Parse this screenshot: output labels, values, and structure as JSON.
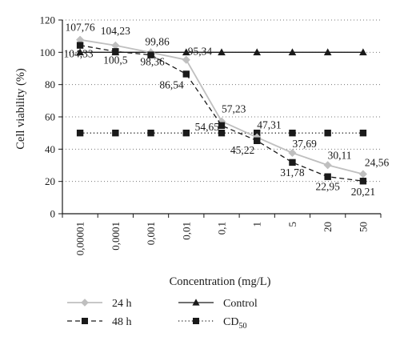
{
  "chart_data": {
    "type": "line",
    "xlabel": "Concentration (mg/L)",
    "ylabel": "Cell viability (%)",
    "ylim": [
      0,
      120
    ],
    "yticks": [
      0,
      20,
      40,
      60,
      80,
      100,
      120
    ],
    "grid": "horizontal dotted",
    "legend_position": "bottom",
    "categories": [
      "0,00001",
      "0,0001",
      "0,001",
      "0,01",
      "0,1",
      "1",
      "5",
      "20",
      "50"
    ],
    "series": [
      {
        "name": "24 h",
        "color": "#bfbfbf",
        "marker": "diamond",
        "line_style": "solid",
        "values": [
          107.76,
          104.23,
          99.86,
          95.34,
          57.23,
          47.31,
          37.69,
          30.11,
          24.56
        ],
        "labels": [
          "107,76",
          "104,23",
          "99,86",
          "95,34",
          "57,23",
          "47,31",
          "37,69",
          "30,11",
          "24,56"
        ]
      },
      {
        "name": "48 h",
        "color": "#1a1a1a",
        "marker": "square",
        "line_style": "dashed",
        "values": [
          104.33,
          100.5,
          98.36,
          86.54,
          54.65,
          45.22,
          31.78,
          22.95,
          20.21
        ],
        "labels": [
          "104,33",
          "100,5",
          "98,36",
          "86,54",
          "54,65",
          "45,22",
          "31,78",
          "22,95",
          "20,21"
        ]
      },
      {
        "name": "Control",
        "color": "#1a1a1a",
        "marker": "triangle",
        "line_style": "solid",
        "values": [
          100,
          100,
          100,
          100,
          100,
          100,
          100,
          100,
          100
        ]
      },
      {
        "name": "CD",
        "name_subscript": "50",
        "color": "#1a1a1a",
        "marker": "square",
        "line_style": "dotted",
        "values": [
          50,
          50,
          50,
          50,
          50,
          50,
          50,
          50,
          50
        ]
      }
    ]
  }
}
